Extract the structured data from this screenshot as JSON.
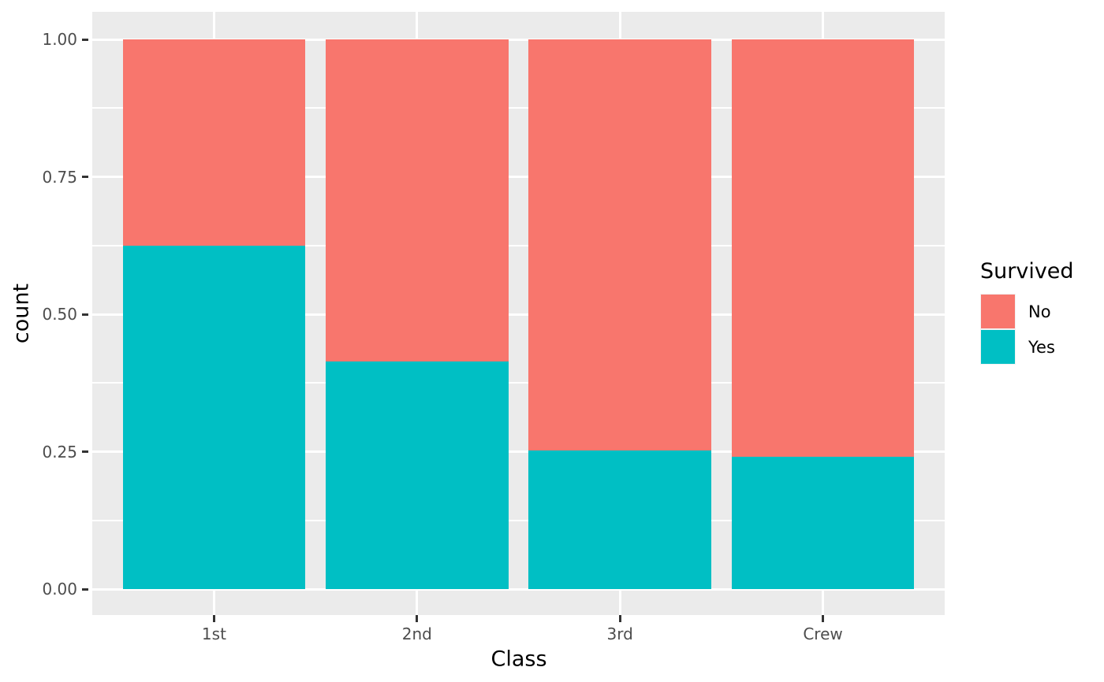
{
  "chart_data": {
    "type": "bar",
    "subtype": "stacked-filled-proportion",
    "title": "",
    "xlabel": "Class",
    "ylabel": "count",
    "categories": [
      "1st",
      "2nd",
      "3rd",
      "Crew"
    ],
    "series": [
      {
        "name": "Yes",
        "color": "#00BFC4",
        "values": [
          0.625,
          0.414,
          0.252,
          0.24
        ]
      },
      {
        "name": "No",
        "color": "#F8766D",
        "values": [
          0.375,
          0.586,
          0.748,
          0.76
        ]
      }
    ],
    "stack_order_bottom_to_top": [
      "Yes",
      "No"
    ],
    "ylim": [
      0,
      1
    ],
    "ytick_values": [
      0,
      0.25,
      0.5,
      0.75,
      1
    ],
    "ytick_labels": [
      "0.00",
      "0.25",
      "0.50",
      "0.75",
      "1.00"
    ],
    "minor_gridline_values": [
      0.125,
      0.375,
      0.625,
      0.875
    ],
    "grid": true,
    "legend": {
      "title": "Survived",
      "position": "right",
      "entries": [
        {
          "label": "No",
          "color": "#F8766D"
        },
        {
          "label": "Yes",
          "color": "#00BFC4"
        }
      ]
    }
  },
  "style": {
    "panel_bg": "#EBEBEB",
    "plot_bg": "#FFFFFF",
    "grid_color": "#FFFFFF",
    "axis_text_color": "#4D4D4D",
    "tick_color": "#333333",
    "title_color": "#000000",
    "legend_key_bg": "#F2F2F2"
  }
}
